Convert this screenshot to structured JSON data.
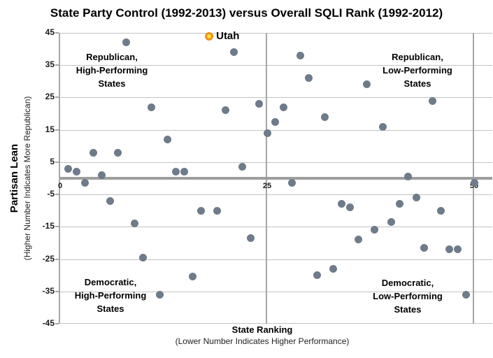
{
  "title": "State Party Control (1992-2013) versus Overall SQLI Rank (1992-2012)",
  "colors": {
    "dot": "#6e7b8a",
    "gridline": "#c3c3c3",
    "axis_line": "#a6a6a6",
    "zero_line": "#9e9e9e",
    "utah_ring": "#f0901e",
    "utah_fill": "#ffe133",
    "text": "#000000"
  },
  "chart_data": {
    "type": "scatter",
    "title": "State Party Control (1992-2013) versus Overall SQLI Rank (1992-2012)",
    "xlabel": "State Ranking",
    "xlabel_note": "(Lower Number Indicates Higher Performance)",
    "ylabel": "Partisan Lean",
    "ylabel_note": "(Higher Number Indicates More Republican)",
    "xlim": [
      0,
      52
    ],
    "ylim": [
      -45,
      45
    ],
    "x_ticks": [
      0,
      25,
      50
    ],
    "y_ticks": [
      45,
      35,
      25,
      15,
      5,
      -5,
      -15,
      -25,
      -35,
      -45
    ],
    "grid": true,
    "annotations": {
      "top_left": "Republican,\nHigh-Performing\nStates",
      "top_right": "Republican,\nLow-Performing\nStates",
      "bottom_left": "Democratic,\nHigh-Performing\nStates",
      "bottom_right": "Democratic,\nLow-Performing\nStates"
    },
    "highlight_point": {
      "label": "Utah",
      "x": 18,
      "y": 44
    },
    "points": [
      [
        8,
        42
      ],
      [
        21,
        39
      ],
      [
        11,
        22
      ],
      [
        20,
        21
      ],
      [
        13,
        12
      ],
      [
        4,
        8
      ],
      [
        7,
        8
      ],
      [
        1,
        3
      ],
      [
        2,
        2
      ],
      [
        5,
        1
      ],
      [
        14,
        2
      ],
      [
        15,
        2
      ],
      [
        22,
        3.5
      ],
      [
        3,
        -1.5
      ],
      [
        29,
        38
      ],
      [
        30,
        31
      ],
      [
        37,
        29
      ],
      [
        45,
        24
      ],
      [
        24,
        23
      ],
      [
        27,
        22
      ],
      [
        32,
        19
      ],
      [
        26,
        17.5
      ],
      [
        39,
        16
      ],
      [
        25,
        14
      ],
      [
        42,
        0.5
      ],
      [
        28,
        -1.5
      ],
      [
        50,
        -1.5
      ],
      [
        6,
        -7
      ],
      [
        9,
        -14
      ],
      [
        17,
        -10
      ],
      [
        19,
        -10
      ],
      [
        23,
        -18.5
      ],
      [
        10,
        -24.5
      ],
      [
        16,
        -30.5
      ],
      [
        12,
        -36
      ],
      [
        43,
        -6
      ],
      [
        34,
        -8
      ],
      [
        35,
        -9
      ],
      [
        41,
        -8
      ],
      [
        46,
        -10
      ],
      [
        40,
        -13.5
      ],
      [
        38,
        -16
      ],
      [
        36,
        -19
      ],
      [
        44,
        -21.5
      ],
      [
        47,
        -22
      ],
      [
        48,
        -22
      ],
      [
        31,
        -30
      ],
      [
        33,
        -28
      ],
      [
        49,
        -36
      ]
    ]
  }
}
